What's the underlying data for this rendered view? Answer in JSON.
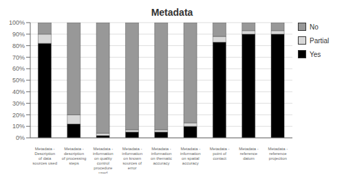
{
  "chart_data": {
    "type": "bar",
    "title": "Metadata",
    "categories": [
      "Metadata -\nDescription\nof data\nsources used",
      "Metadata -\ndescription\nof processing\nsteps",
      "Metadata -\ninformation\non quality\ncontrol\nprocedure\nused",
      "Metadata -\ninformation\non known\nsources of\nerror",
      "Metadata -\ninformation\non thematic\naccuracy",
      "Metadata -\ninformation\non spatial\naccuracy",
      "Metadata -\npoint of\ncontact",
      "Metadata -\nreference\ndatum",
      "Metadata -\nreference\nprojection"
    ],
    "series": [
      {
        "name": "Yes",
        "color": "#000000",
        "values": [
          82,
          12,
          2,
          5,
          5,
          10,
          83,
          90,
          90
        ]
      },
      {
        "name": "Partial",
        "color": "#d8d8d8",
        "values": [
          8,
          8,
          2,
          2,
          2,
          3,
          5,
          3,
          3
        ]
      },
      {
        "name": "No",
        "color": "#989898",
        "values": [
          10,
          80,
          96,
          93,
          93,
          87,
          12,
          7,
          7
        ]
      }
    ],
    "stacked": true,
    "ylim": [
      0,
      100
    ],
    "yticks": [
      {
        "value": 0,
        "label": "0%"
      },
      {
        "value": 10,
        "label": "10%"
      },
      {
        "value": 20,
        "label": "20%"
      },
      {
        "value": 30,
        "label": "30%"
      },
      {
        "value": 40,
        "label": "40%"
      },
      {
        "value": 50,
        "label": "50%"
      },
      {
        "value": 60,
        "label": "60%"
      },
      {
        "value": 70,
        "label": "70%"
      },
      {
        "value": 80,
        "label": "80%"
      },
      {
        "value": 90,
        "label": "90%"
      },
      {
        "value": 100,
        "label": "100%"
      }
    ],
    "grid": true,
    "legend": "right"
  }
}
